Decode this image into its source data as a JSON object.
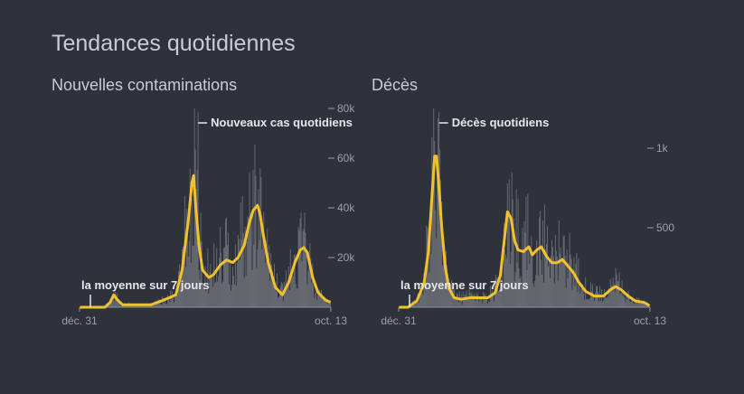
{
  "page": {
    "title": "Tendances quotidiennes"
  },
  "chart_data": [
    {
      "type": "bar",
      "title": "Nouvelles contaminations",
      "xlabel": "",
      "ylabel": "",
      "x_ticks": [
        "déc. 31",
        "oct. 13"
      ],
      "y_ticks": [
        {
          "v": 20000,
          "label": "20k"
        },
        {
          "v": 40000,
          "label": "40k"
        },
        {
          "v": 60000,
          "label": "60k"
        },
        {
          "v": 80000,
          "label": "80k"
        }
      ],
      "ylim": [
        0,
        80000
      ],
      "bar_label": "Nouveaux cas quotidiens",
      "avg_label": "la moyenne sur 7 jours",
      "bar_peak_index": 133,
      "avg_knots": [
        [
          0,
          0
        ],
        [
          28,
          0
        ],
        [
          34,
          2000
        ],
        [
          38,
          5000
        ],
        [
          42,
          3000
        ],
        [
          48,
          1000
        ],
        [
          60,
          1000
        ],
        [
          80,
          1000
        ],
        [
          95,
          3000
        ],
        [
          108,
          5000
        ],
        [
          115,
          15000
        ],
        [
          122,
          35000
        ],
        [
          126,
          50000
        ],
        [
          128,
          53000
        ],
        [
          130,
          42000
        ],
        [
          134,
          25000
        ],
        [
          138,
          15000
        ],
        [
          145,
          12000
        ],
        [
          150,
          13000
        ],
        [
          158,
          17000
        ],
        [
          165,
          19000
        ],
        [
          172,
          18000
        ],
        [
          178,
          20000
        ],
        [
          185,
          25000
        ],
        [
          190,
          33000
        ],
        [
          195,
          39000
        ],
        [
          200,
          41000
        ],
        [
          203,
          37000
        ],
        [
          206,
          30000
        ],
        [
          212,
          18000
        ],
        [
          220,
          8000
        ],
        [
          228,
          5000
        ],
        [
          235,
          10000
        ],
        [
          242,
          18000
        ],
        [
          248,
          23000
        ],
        [
          252,
          24000
        ],
        [
          256,
          22000
        ],
        [
          262,
          12000
        ],
        [
          268,
          6000
        ],
        [
          276,
          3000
        ],
        [
          282,
          2000
        ]
      ],
      "series_color": "#f2c12e",
      "bar_color": "#7c7f86"
    },
    {
      "type": "bar",
      "title": "Décès",
      "xlabel": "",
      "ylabel": "",
      "x_ticks": [
        "déc. 31",
        "oct. 13"
      ],
      "y_ticks": [
        {
          "v": 500,
          "label": "500"
        },
        {
          "v": 1000,
          "label": "1k"
        }
      ],
      "ylim": [
        0,
        1250
      ],
      "bar_label": "Décès quotidiens",
      "avg_label": "la moyenne sur 7 jours",
      "bar_peak_index": 45,
      "avg_knots": [
        [
          0,
          0
        ],
        [
          10,
          0
        ],
        [
          20,
          40
        ],
        [
          28,
          150
        ],
        [
          33,
          350
        ],
        [
          37,
          700
        ],
        [
          40,
          950
        ],
        [
          42,
          950
        ],
        [
          44,
          820
        ],
        [
          48,
          500
        ],
        [
          52,
          250
        ],
        [
          56,
          120
        ],
        [
          62,
          60
        ],
        [
          70,
          50
        ],
        [
          80,
          60
        ],
        [
          88,
          60
        ],
        [
          100,
          60
        ],
        [
          108,
          90
        ],
        [
          114,
          200
        ],
        [
          118,
          400
        ],
        [
          122,
          600
        ],
        [
          126,
          560
        ],
        [
          130,
          420
        ],
        [
          134,
          360
        ],
        [
          140,
          350
        ],
        [
          146,
          380
        ],
        [
          150,
          330
        ],
        [
          155,
          360
        ],
        [
          160,
          380
        ],
        [
          166,
          320
        ],
        [
          172,
          280
        ],
        [
          178,
          280
        ],
        [
          184,
          300
        ],
        [
          190,
          260
        ],
        [
          196,
          220
        ],
        [
          202,
          160
        ],
        [
          210,
          100
        ],
        [
          220,
          70
        ],
        [
          230,
          70
        ],
        [
          238,
          110
        ],
        [
          244,
          130
        ],
        [
          250,
          110
        ],
        [
          258,
          70
        ],
        [
          266,
          40
        ],
        [
          276,
          30
        ],
        [
          282,
          10
        ]
      ],
      "series_color": "#f2c12e",
      "bar_color": "#7c7f86"
    }
  ]
}
